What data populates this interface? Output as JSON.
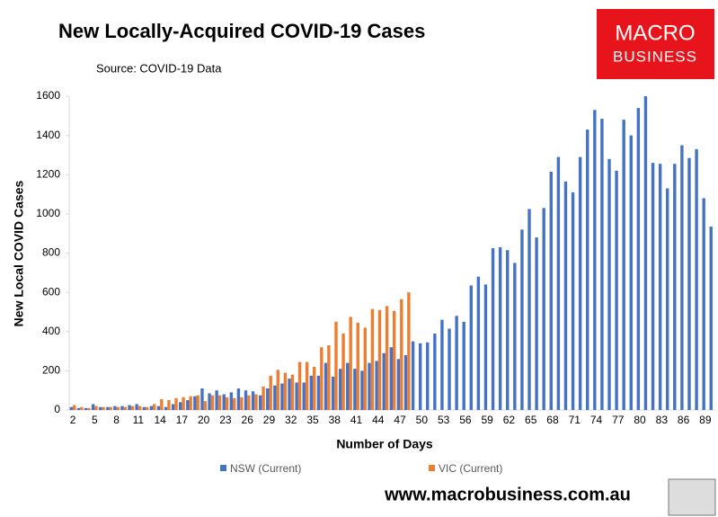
{
  "chart_data": {
    "type": "bar",
    "title": "New Locally-Acquired COVID-19 Cases",
    "subtitle": "Source: COVID-19 Data",
    "x_label": "Number of Days",
    "y_label": "New Local COVID Cases",
    "categories": [
      "2",
      null,
      null,
      "5",
      null,
      null,
      "8",
      null,
      null,
      "11",
      null,
      null,
      "14",
      null,
      null,
      "17",
      null,
      null,
      "20",
      null,
      null,
      "23",
      null,
      null,
      "26",
      null,
      null,
      "29",
      null,
      null,
      "32",
      null,
      null,
      "35",
      null,
      null,
      "38",
      null,
      null,
      "41",
      null,
      null,
      "44",
      null,
      null,
      "47",
      null,
      null,
      "50",
      null,
      null,
      "53",
      null,
      null,
      "56",
      null,
      null,
      "59",
      null,
      null,
      "62",
      null,
      null,
      "65",
      null,
      null,
      "68",
      null,
      null,
      "71",
      null,
      null,
      "74",
      null,
      null,
      "77",
      null,
      null,
      "80",
      null,
      null,
      "83",
      null,
      null,
      "86",
      null,
      null,
      "89",
      null
    ],
    "series": [
      {
        "name": "NSW (Current)",
        "color": "#4472c4",
        "values": [
          15,
          10,
          10,
          30,
          15,
          15,
          20,
          20,
          25,
          30,
          15,
          20,
          20,
          15,
          30,
          40,
          50,
          70,
          110,
          85,
          100,
          80,
          90,
          110,
          100,
          95,
          75,
          110,
          125,
          135,
          160,
          140,
          140,
          175,
          175,
          240,
          170,
          210,
          240,
          210,
          200,
          240,
          250,
          290,
          320,
          260,
          280,
          350,
          340,
          345,
          390,
          460,
          415,
          480,
          450,
          635,
          680,
          640,
          825,
          830,
          815,
          750,
          920,
          1025,
          880,
          1030,
          1215,
          1290,
          1165,
          1110,
          1290,
          1430,
          1530,
          1485,
          1280,
          1220,
          1480,
          1400,
          1540,
          1600,
          1260,
          1255,
          1130,
          1255,
          1350,
          1285,
          1330,
          1080,
          935
        ]
      },
      {
        "name": "VIC (Current)",
        "color": "#ed7d31",
        "values": [
          25,
          15,
          10,
          20,
          15,
          15,
          15,
          15,
          20,
          20,
          15,
          30,
          55,
          50,
          60,
          65,
          70,
          75,
          45,
          75,
          75,
          65,
          60,
          65,
          75,
          80,
          120,
          175,
          205,
          190,
          180,
          245,
          245,
          220,
          320,
          330,
          450,
          390,
          475,
          445,
          420,
          515,
          510,
          530,
          505,
          565,
          600,
          null,
          null,
          null,
          null,
          null,
          null,
          null,
          null,
          null,
          null,
          null,
          null,
          null,
          null,
          null,
          null,
          null,
          null,
          null,
          null,
          null,
          null,
          null,
          null,
          null,
          null,
          null,
          null,
          null,
          null,
          null,
          null,
          null,
          null,
          null,
          null,
          null,
          null,
          null,
          null,
          null,
          null
        ]
      }
    ],
    "ylim": [
      0,
      1600
    ],
    "yticks": [
      0,
      200,
      400,
      600,
      800,
      1000,
      1200,
      1400,
      1600
    ],
    "grid": false,
    "legend": "bottom",
    "logo": {
      "line1": "MACRO",
      "line2": "BUSINESS"
    },
    "url": "www.macrobusiness.com.au"
  }
}
